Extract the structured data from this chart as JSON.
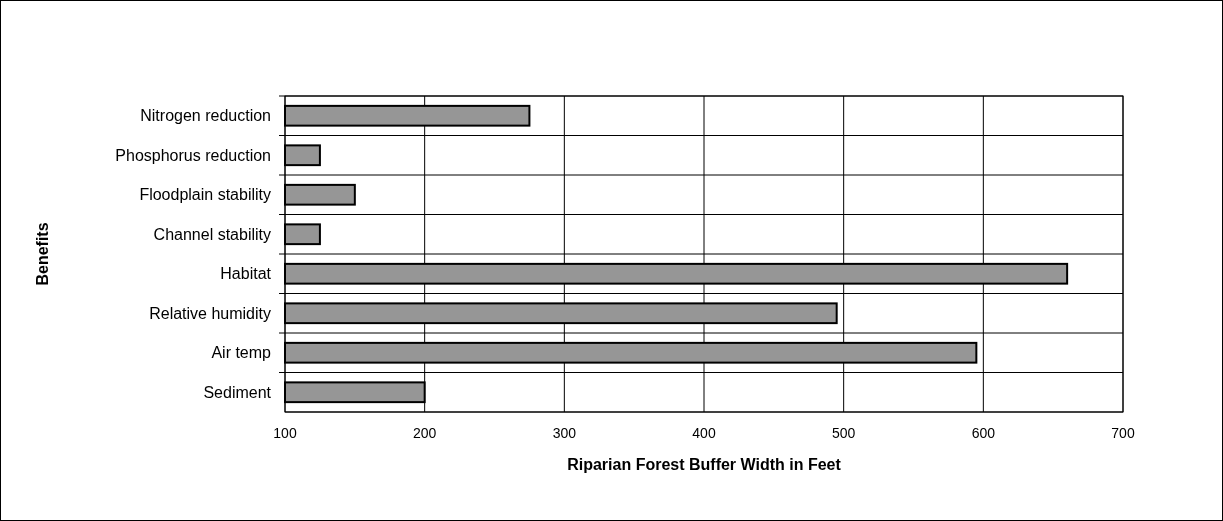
{
  "chart_data": {
    "type": "bar",
    "orientation": "horizontal",
    "categories": [
      "Nitrogen reduction",
      "Phosphorus reduction",
      "Floodplain stability",
      "Channel stability",
      "Habitat",
      "Relative humidity",
      "Air temp",
      "Sediment"
    ],
    "values": [
      275,
      125,
      150,
      125,
      660,
      495,
      595,
      200
    ],
    "color": "#969696",
    "xlabel": "Riparian Forest Buffer Width in Feet",
    "ylabel": "Benefits",
    "xlim": [
      100,
      700
    ],
    "xticks": [
      100,
      200,
      300,
      400,
      500,
      600,
      700
    ],
    "grid": true
  }
}
